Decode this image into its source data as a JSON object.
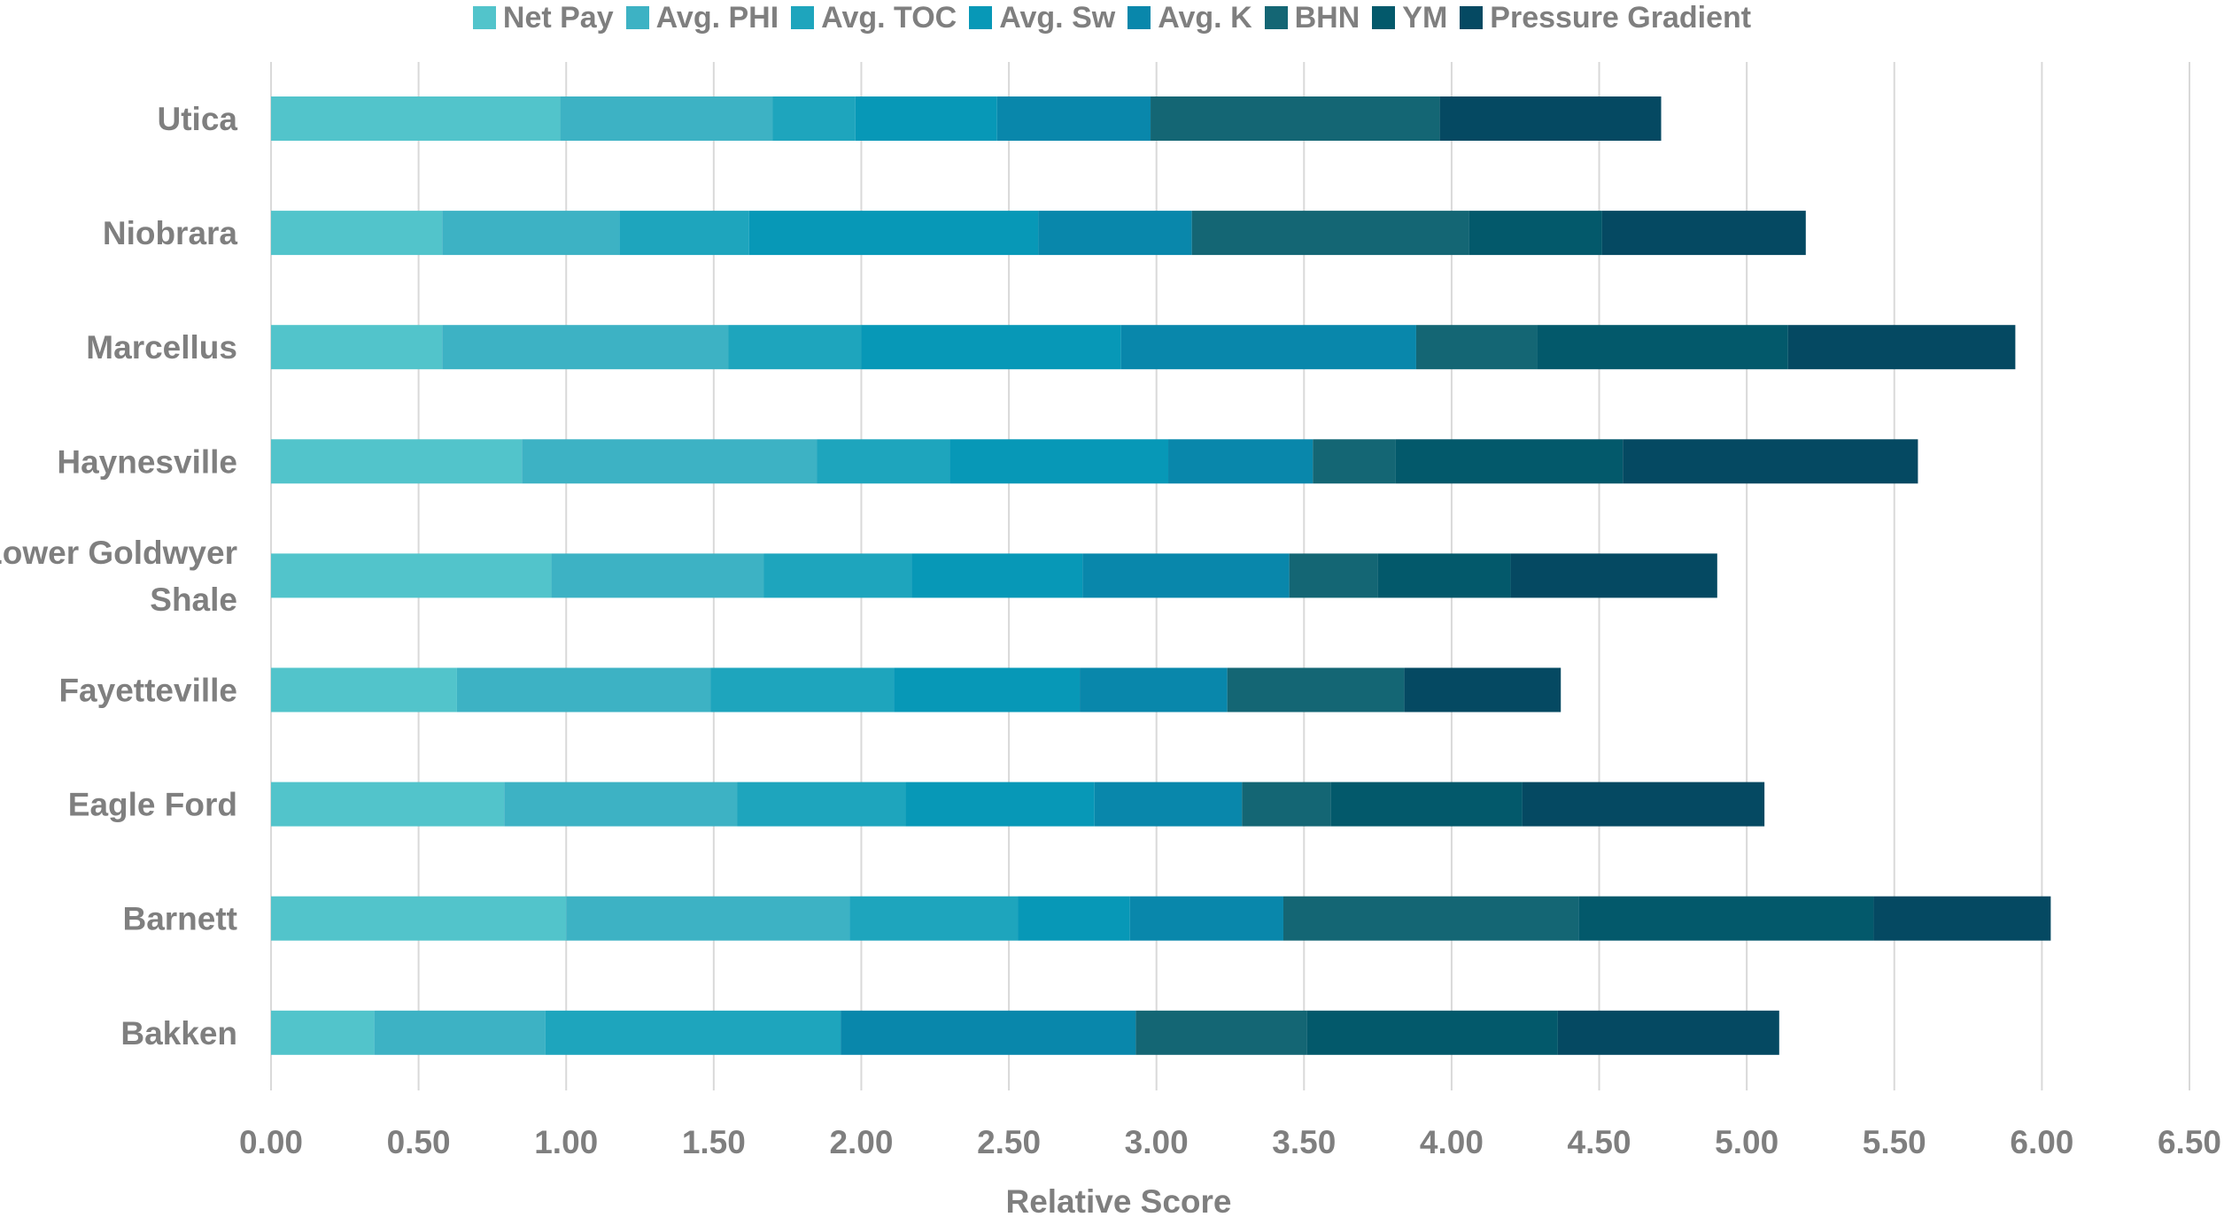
{
  "chart_data": {
    "type": "bar",
    "orientation": "horizontal",
    "stacked": true,
    "title": "",
    "xlabel": "Relative Score",
    "ylabel": "",
    "xlim": [
      0,
      6.5
    ],
    "x_ticks": [
      "0.00",
      "0.50",
      "1.00",
      "1.50",
      "2.00",
      "2.50",
      "3.00",
      "3.50",
      "4.00",
      "4.50",
      "5.00",
      "5.50",
      "6.00",
      "6.50"
    ],
    "grid": "vertical",
    "legend_position": "top",
    "categories": [
      "Utica",
      "Niobrara",
      "Marcellus",
      "Haynesville",
      "Lower Goldwyer Shale",
      "Fayetteville",
      "Eagle Ford",
      "Barnett",
      "Bakken"
    ],
    "category_lines": [
      [
        "Utica"
      ],
      [
        "Niobrara"
      ],
      [
        "Marcellus"
      ],
      [
        "Haynesville"
      ],
      [
        "Lower Goldwyer",
        "Shale"
      ],
      [
        "Fayetteville"
      ],
      [
        "Eagle Ford"
      ],
      [
        "Barnett"
      ],
      [
        "Bakken"
      ]
    ],
    "series": [
      {
        "name": "Net Pay",
        "color": "#52c4cb",
        "values": [
          0.98,
          0.58,
          0.58,
          0.85,
          0.95,
          0.63,
          0.79,
          1.0,
          0.35
        ]
      },
      {
        "name": "Avg. PHI",
        "color": "#3db2c4",
        "values": [
          0.72,
          0.6,
          0.97,
          1.0,
          0.72,
          0.86,
          0.79,
          0.96,
          0.58
        ]
      },
      {
        "name": "Avg. TOC",
        "color": "#1ea5bd",
        "values": [
          0.28,
          0.44,
          0.45,
          0.45,
          0.5,
          0.62,
          0.57,
          0.57,
          1.0
        ]
      },
      {
        "name": "Avg. Sw",
        "color": "#0798b7",
        "values": [
          0.48,
          0.98,
          0.88,
          0.74,
          0.58,
          0.63,
          0.64,
          0.38,
          0.0
        ]
      },
      {
        "name": "Avg. K",
        "color": "#0987ab",
        "values": [
          0.52,
          0.52,
          1.0,
          0.49,
          0.7,
          0.5,
          0.5,
          0.52,
          1.0
        ]
      },
      {
        "name": "BHN",
        "color": "#146674",
        "values": [
          0.98,
          0.94,
          0.41,
          0.28,
          0.3,
          0.6,
          0.3,
          1.0,
          0.58
        ]
      },
      {
        "name": "YM",
        "color": "#03596b",
        "values": [
          0.0,
          0.45,
          0.85,
          0.77,
          0.45,
          0.0,
          0.65,
          1.0,
          0.85
        ]
      },
      {
        "name": "Pressure Gradient",
        "color": "#054962",
        "values": [
          0.75,
          0.69,
          0.77,
          1.0,
          0.7,
          0.53,
          0.82,
          0.6,
          0.75
        ]
      }
    ]
  }
}
